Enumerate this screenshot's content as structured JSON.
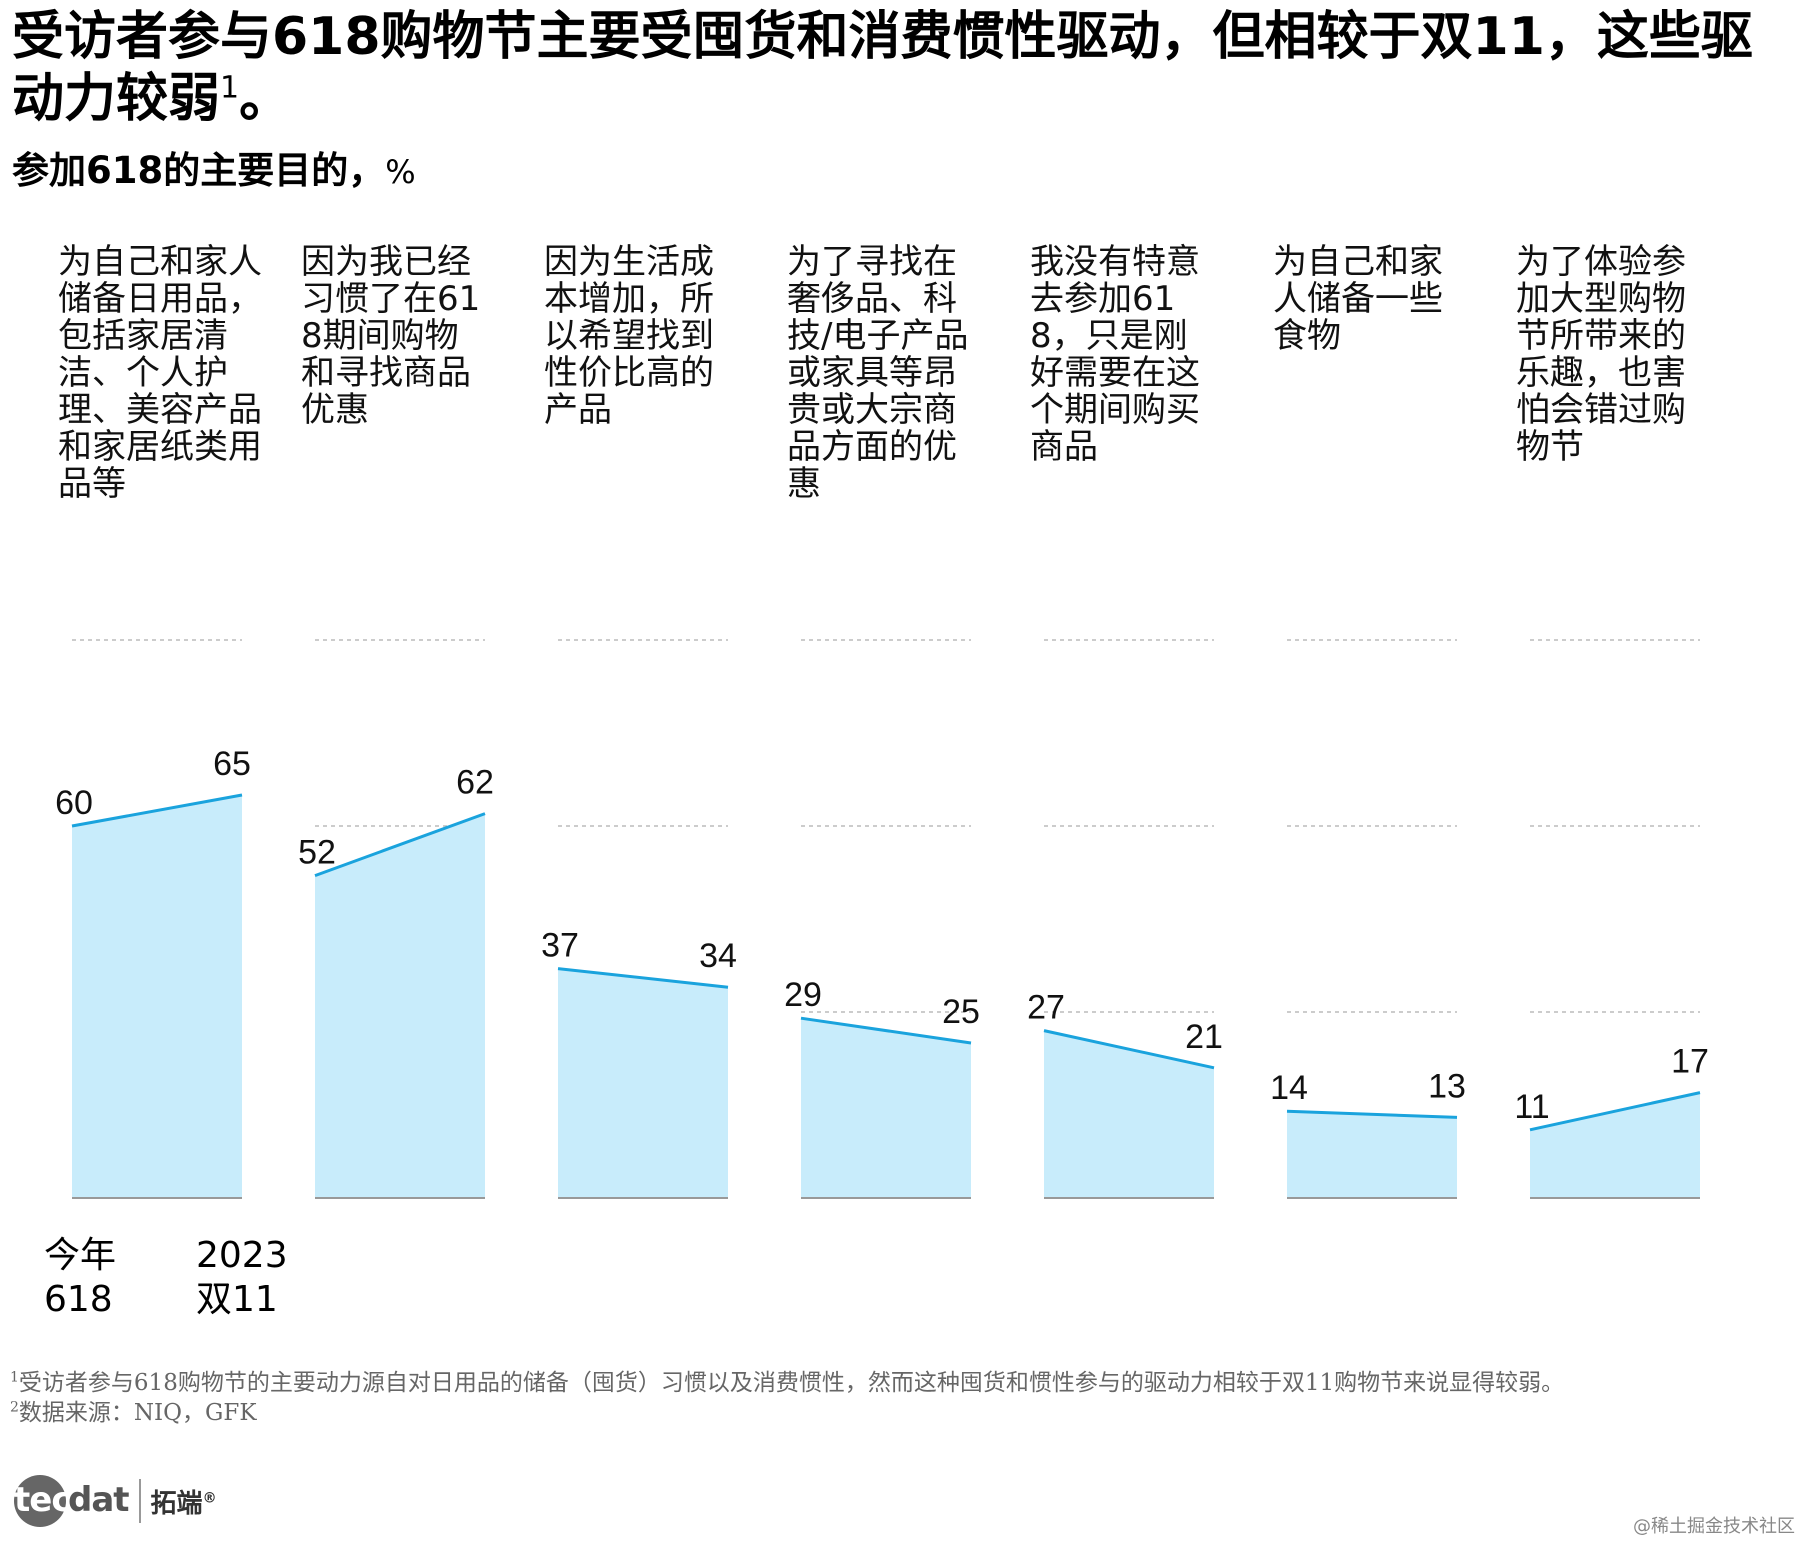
{
  "title": {
    "text": "受访者参与618购物节主要受囤货和消费惯性驱动，但相较于双11，这些驱动力较弱",
    "footnote_ref": "1",
    "tail": "。"
  },
  "subtitle": {
    "text": "参加618的主要目的，",
    "unit": "%"
  },
  "legend_labels": {
    "current": "今年\n618",
    "previous": "2023\n双11"
  },
  "chart_data": {
    "type": "area",
    "ylim": [
      0,
      90
    ],
    "grid": "dashed",
    "colors": {
      "line": "#1aa3dd",
      "fill": "#c8ecfb",
      "baseline": "#999999",
      "grid": "#bbbbbb"
    },
    "series_names": [
      "今年618",
      "2023双11"
    ],
    "categories": [
      {
        "label": "为自己和家人储备日用品，包括家居清洁、个人护理、美容产品和家居纸类用品等",
        "values": [
          60,
          65
        ]
      },
      {
        "label": "因为我已经习惯了在618期间购物和寻找商品优惠",
        "values": [
          52,
          62
        ]
      },
      {
        "label": "因为生活成本增加，所以希望找到性价比高的产品",
        "values": [
          37,
          34
        ]
      },
      {
        "label": "为了寻找在奢侈品、科技/电子产品或家具等昂贵或大宗商品方面的优惠",
        "values": [
          29,
          25
        ]
      },
      {
        "label": "我没有特意去参加618，只是刚好需要在这个期间购买商品",
        "values": [
          27,
          21
        ]
      },
      {
        "label": "为自己和家人储备一些食物",
        "values": [
          14,
          13
        ]
      },
      {
        "label": "为了体验参加大型购物节所带来的乐趣，也害怕会错过购物节",
        "values": [
          11,
          17
        ]
      }
    ]
  },
  "footnotes": [
    {
      "ref": "1",
      "text": "受访者参与618购物节的主要动力源自对日用品的储备（囤货）习惯以及消费惯性，然而这种囤货和惯性参与的驱动力相较于双11购物节来说显得较弱。"
    },
    {
      "ref": "2",
      "text": "数据来源：NIQ，GFK"
    }
  ],
  "logo": {
    "mark_circle": "tec",
    "mark_rest": "dat",
    "cn": "拓端",
    "registered": "®"
  },
  "watermark": "@稀土掘金技术社区"
}
